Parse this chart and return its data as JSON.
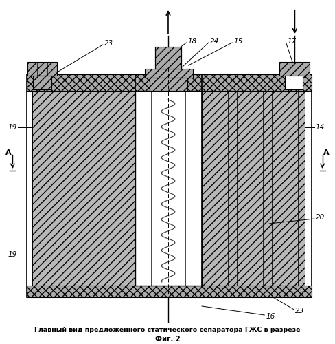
{
  "title_line1": "Главный вид предложенного статического сепаратора ГЖС в разрезе",
  "title_line2": "Фиг. 2",
  "bg_color": "#ffffff",
  "line_color": "#000000",
  "fig_width": 4.88,
  "fig_height": 5.0
}
